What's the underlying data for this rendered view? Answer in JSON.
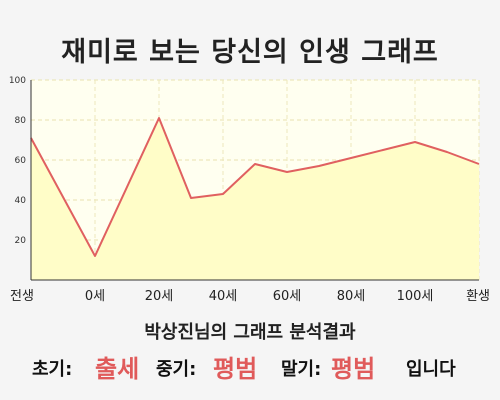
{
  "title": "재미로 보는 당신의 인생 그래프",
  "chart_data": {
    "type": "area",
    "title": "재미로 보는 당신의 인생 그래프",
    "categories": [
      "전생",
      "0세",
      "20세",
      "40세",
      "60세",
      "80세",
      "100세",
      "환생"
    ],
    "x": [
      0,
      1,
      2,
      3,
      4,
      5,
      6,
      7
    ],
    "tick_positions": [
      0,
      1,
      2,
      3,
      4,
      5,
      6,
      7
    ],
    "points": [
      [
        0,
        71
      ],
      [
        1,
        12
      ],
      [
        2,
        81
      ],
      [
        2.5,
        41
      ],
      [
        3,
        43
      ],
      [
        3.5,
        58
      ],
      [
        4,
        54
      ],
      [
        4.5,
        57
      ],
      [
        5,
        61
      ],
      [
        5.5,
        65
      ],
      [
        6,
        69
      ],
      [
        6.5,
        64
      ],
      [
        7,
        58
      ]
    ],
    "yticks": [
      20,
      40,
      60,
      80,
      100
    ],
    "ylim": [
      0,
      100
    ],
    "xlabel": "",
    "ylabel": "",
    "grid": true,
    "fill_color": "#fffdc8",
    "line_color": "#e06060",
    "plot_bg": "#fffff0"
  },
  "result": {
    "title": "박상진님의 그래프 분석결과",
    "early_label": "초기:",
    "early_value": "출세",
    "middle_label": "중기:",
    "middle_value": "평범",
    "late_label": "말기:",
    "late_value": "평범",
    "suffix": "입니다"
  }
}
